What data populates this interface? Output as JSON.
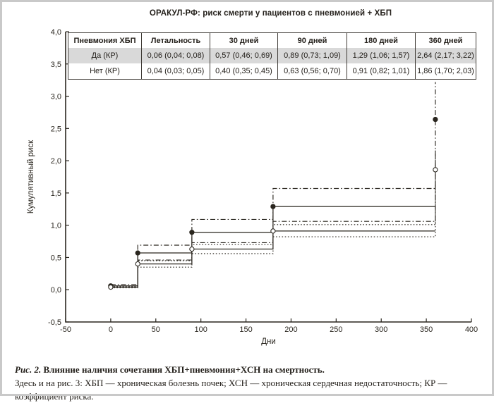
{
  "figure": {
    "caption_label": "Рис. 2.",
    "caption_bold": " Влияние наличия сочетания ХБП+пневмония+ХСН на смертность.",
    "caption_note": "Здесь и на рис. 3: ХБП — хроническая болезнь почек; ХСН — хроническая сердечная недостаточность; КР — коэффициент риска."
  },
  "table": {
    "headers": [
      "Пневмония ХБП",
      "Летальность",
      "30 дней",
      "90 дней",
      "180 дней",
      "360 дней"
    ],
    "rows": [
      {
        "label": "Да (КР)",
        "highlight": true,
        "values": [
          "0,06 (0,04; 0,08)",
          "0,57 (0,46; 0,69)",
          "0,89 (0,73; 1,09)",
          "1,29 (1,06; 1,57)",
          "2,64 (2,17; 3,22)"
        ]
      },
      {
        "label": "Нет (КР)",
        "highlight": false,
        "values": [
          "0,04 (0,03; 0,05)",
          "0,40 (0,35; 0,45)",
          "0,63 (0,56; 0,70)",
          "0,91 (0,82; 1,01)",
          "1,86 (1,70; 2,03)"
        ]
      }
    ]
  },
  "chart_data": {
    "type": "line",
    "subtype": "step-cumulative-hazard",
    "title": "ОРАКУЛ-РФ: риск смерти у пациентов с пневмонией + ХБП",
    "xlabel": "Дни",
    "ylabel": "Кумулятивный риск",
    "xlim": [
      -50,
      400
    ],
    "ylim": [
      -0.5,
      4.0
    ],
    "xticks": [
      -50,
      0,
      50,
      100,
      150,
      200,
      250,
      300,
      350,
      400
    ],
    "xtick_labels": [
      "-50",
      "0",
      "50",
      "100",
      "150",
      "200",
      "250",
      "300",
      "350",
      "400"
    ],
    "yticks": [
      -0.5,
      0.0,
      0.5,
      1.0,
      1.5,
      2.0,
      2.5,
      3.0,
      3.5,
      4.0
    ],
    "ytick_labels": [
      "-0,5",
      "0,0",
      "0,5",
      "1,0",
      "1,5",
      "2,0",
      "2,5",
      "3,0",
      "3,5",
      "4,0"
    ],
    "grid": false,
    "legend": "none (table above serves as legend)",
    "x": [
      0,
      30,
      90,
      180,
      360
    ],
    "series": [
      {
        "id": "da",
        "name": "Да (КР)",
        "marker": "filled-circle",
        "line_style": "solid",
        "ci_style": "dash-dot",
        "values": [
          0.06,
          0.57,
          0.89,
          1.29,
          2.64
        ],
        "ci_lower": [
          0.04,
          0.46,
          0.73,
          1.06,
          2.17
        ],
        "ci_upper": [
          0.08,
          0.69,
          1.09,
          1.57,
          3.22
        ]
      },
      {
        "id": "net",
        "name": "Нет (КР)",
        "marker": "open-circle",
        "line_style": "solid",
        "ci_style": "dotted",
        "values": [
          0.04,
          0.4,
          0.63,
          0.91,
          1.86
        ],
        "ci_lower": [
          0.03,
          0.35,
          0.56,
          0.82,
          1.7
        ],
        "ci_upper": [
          0.05,
          0.45,
          0.7,
          1.01,
          2.03
        ]
      }
    ]
  },
  "colors": {
    "ink": "#2a261f",
    "table_highlight": "#d9d9d9",
    "page_border": "#c9c9c9",
    "background": "#ffffff"
  }
}
